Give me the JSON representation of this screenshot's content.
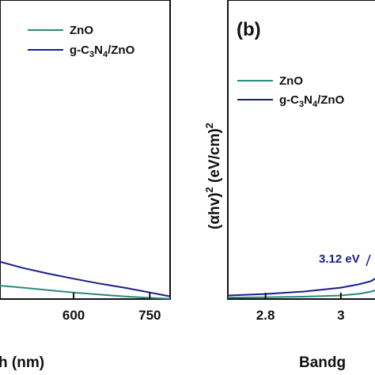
{
  "chart_data": [
    {
      "type": "line",
      "panel_label": "",
      "xlabel": "h (nm)",
      "ylabel": "",
      "x_ticks": [
        600,
        750
      ],
      "xlim": [
        455,
        790
      ],
      "ylim": [
        0,
        1
      ],
      "legend": "top-right",
      "series": [
        {
          "name": "ZnO",
          "color": "#2a8a7e",
          "x": [
            455,
            500,
            550,
            600,
            650,
            700,
            750,
            790
          ],
          "y": [
            0.045,
            0.038,
            0.03,
            0.022,
            0.015,
            0.009,
            0.004,
            0.001
          ]
        },
        {
          "name": "g-C3N4/ZnO",
          "color": "#1c1c8c",
          "x": [
            455,
            500,
            550,
            600,
            650,
            700,
            750,
            790
          ],
          "y": [
            0.125,
            0.104,
            0.085,
            0.068,
            0.052,
            0.038,
            0.022,
            0.009
          ]
        }
      ]
    },
    {
      "type": "line",
      "panel_label": "(b)",
      "xlabel": "Bandg",
      "ylabel": "(αhν)² (eV/cm)²",
      "x_ticks": [
        2.8,
        3.0
      ],
      "xlim": [
        2.7,
        3.12
      ],
      "ylim": [
        0,
        1
      ],
      "legend": "top-left",
      "annotation": {
        "text": "3.12 eV",
        "color": "#1c1c8c"
      },
      "series": [
        {
          "name": "ZnO",
          "color": "#2a8a7e",
          "x": [
            2.7,
            2.8,
            2.9,
            3.0,
            3.05,
            3.08,
            3.1,
            3.12
          ],
          "y": [
            0.005,
            0.006,
            0.008,
            0.012,
            0.018,
            0.025,
            0.033,
            0.045
          ]
        },
        {
          "name": "g-C3N4/ZnO",
          "color": "#1c1c8c",
          "x": [
            2.7,
            2.8,
            2.9,
            3.0,
            3.05,
            3.08,
            3.1,
            3.12
          ],
          "y": [
            0.012,
            0.017,
            0.025,
            0.038,
            0.05,
            0.06,
            0.075,
            0.09
          ]
        }
      ]
    }
  ],
  "legend_labels": {
    "a_zno": "ZnO",
    "a_gc3n4_parts": [
      "g-C",
      "3",
      "N",
      "4",
      "/ZnO"
    ],
    "b_zno": "ZnO",
    "b_gc3n4_parts": [
      "g-C",
      "3",
      "N",
      "4",
      "/ZnO"
    ]
  },
  "ylabel_parts": {
    "open": "(",
    "alpha": "α",
    "hv": "hv)",
    "sup1": "2",
    "units": " (eV/cm)",
    "sup2": "2"
  }
}
